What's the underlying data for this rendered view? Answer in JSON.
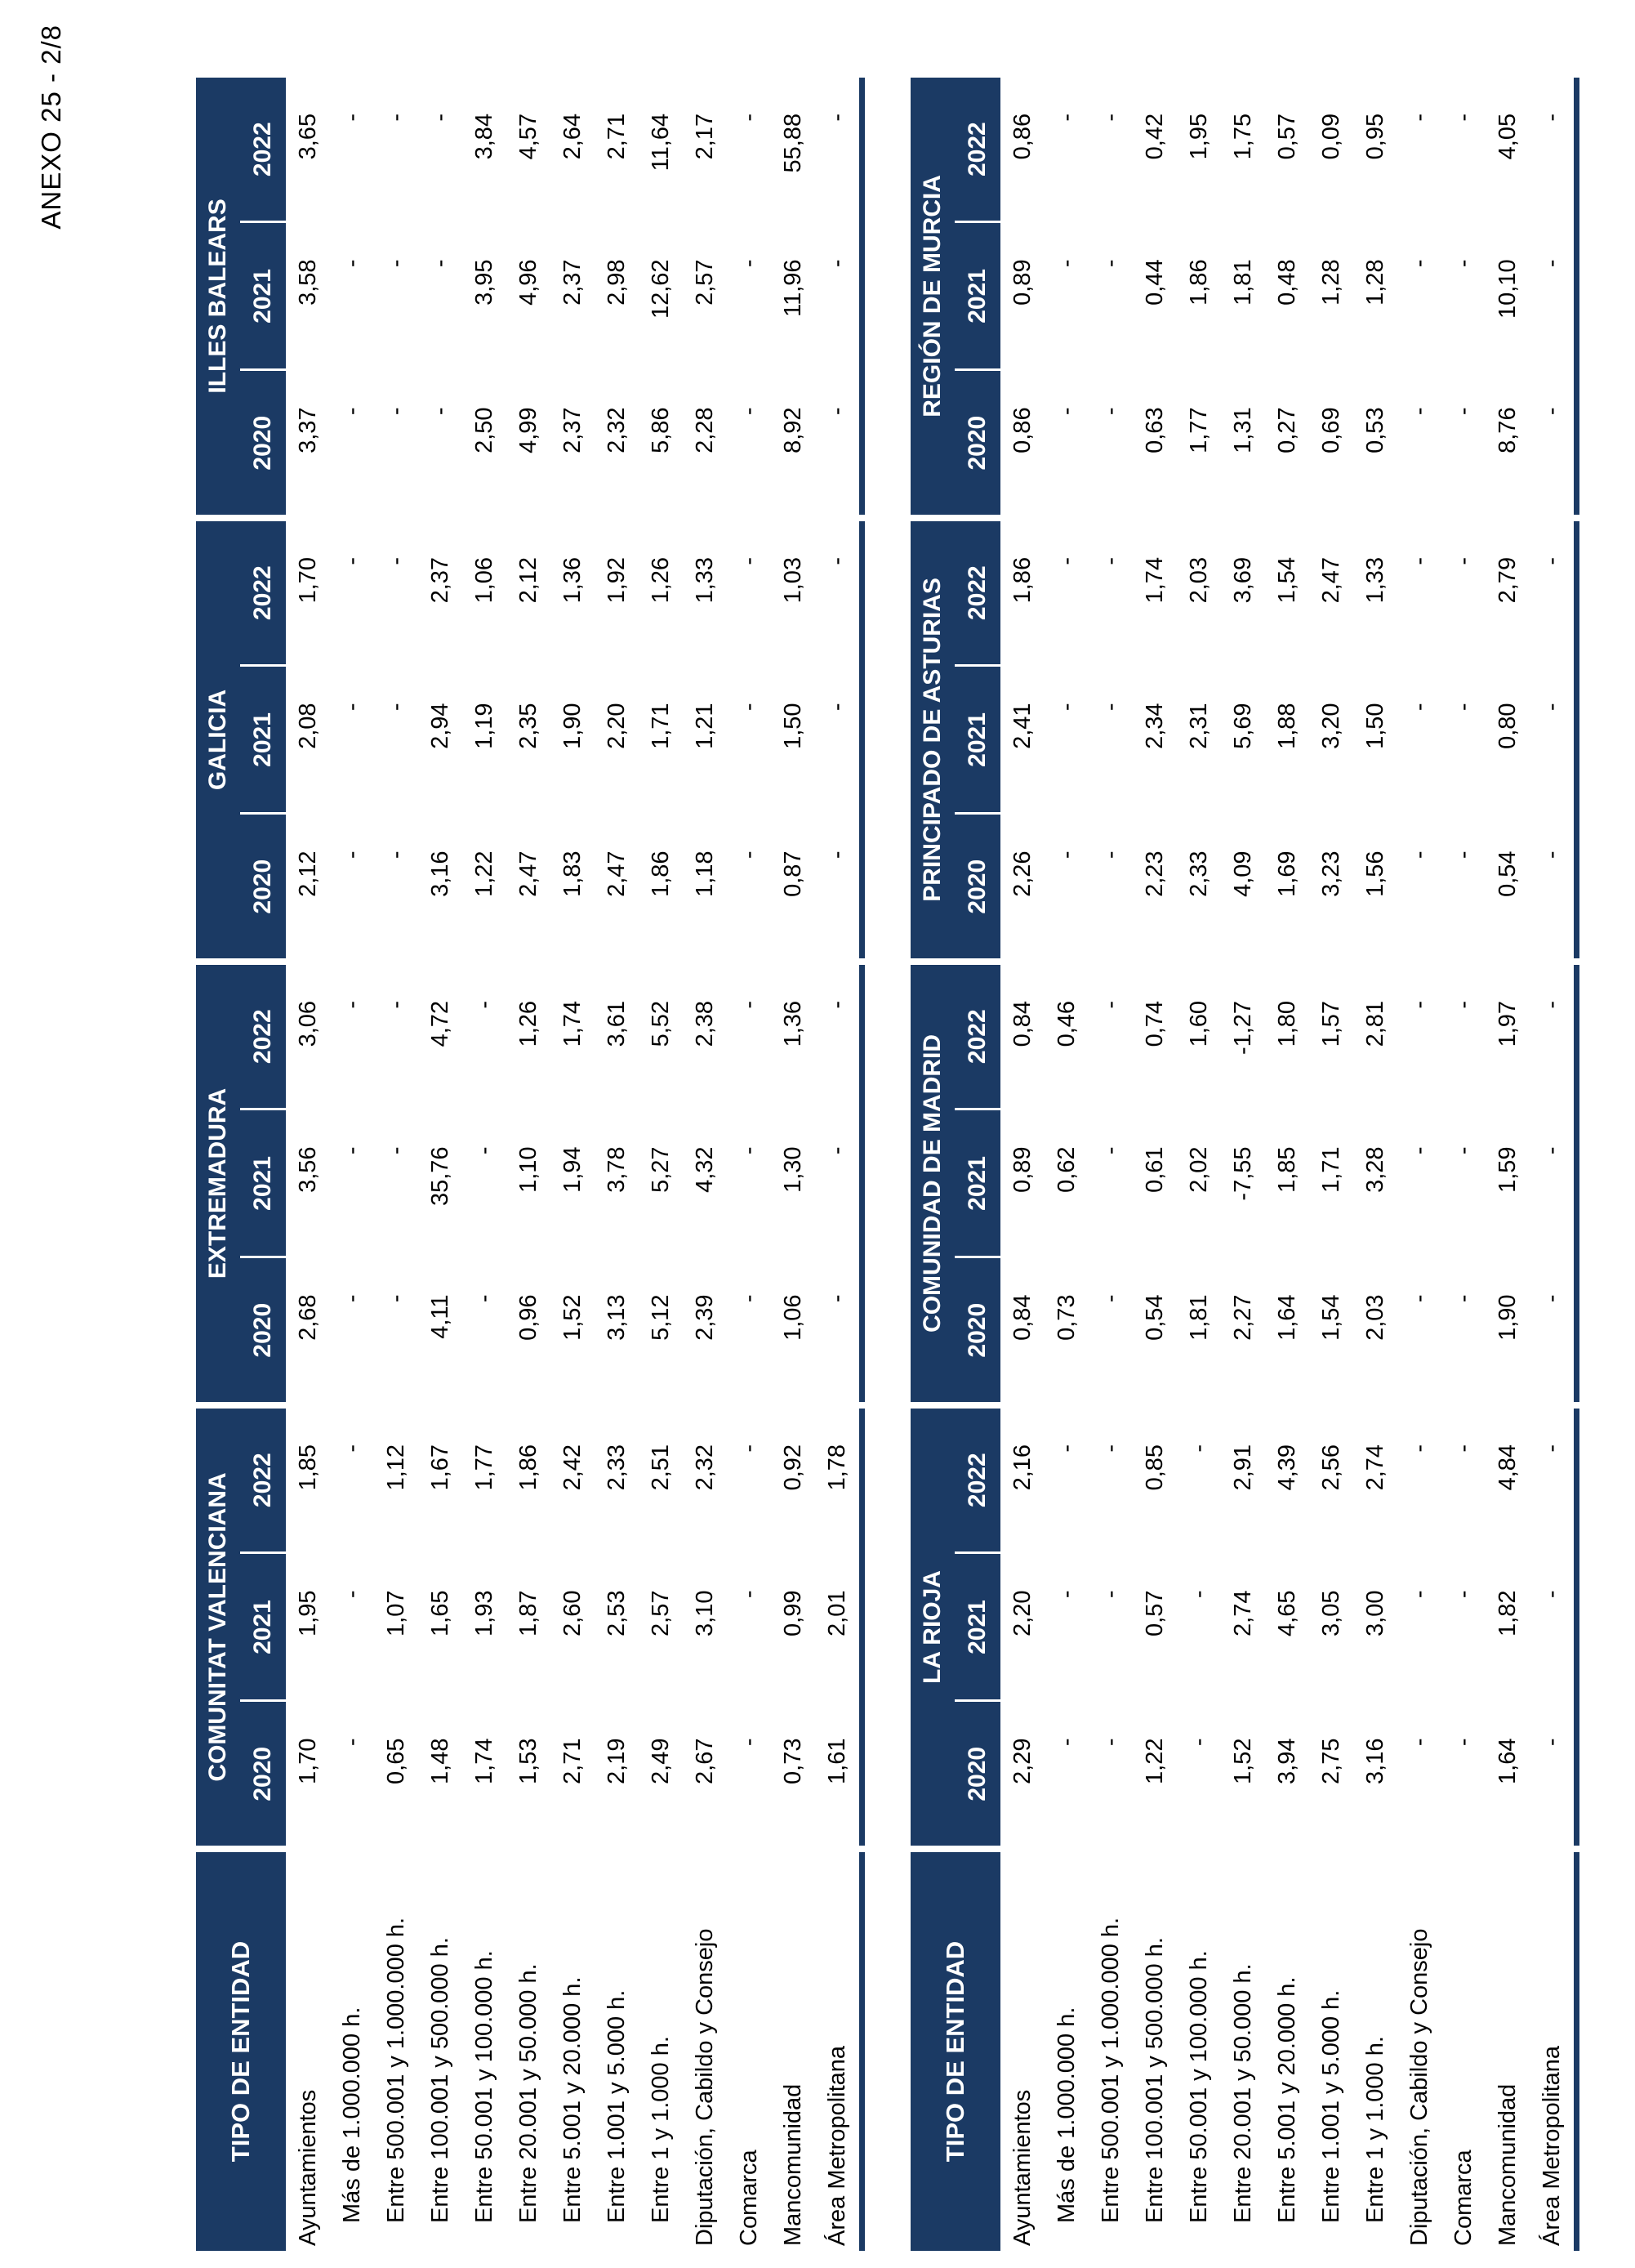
{
  "page": {
    "annex_label": "ANEXO 25 - 2/8"
  },
  "colors": {
    "navy": "#1B3A64",
    "text": "#000000"
  },
  "row_header_title": "TIPO DE ENTIDAD",
  "row_labels": [
    {
      "text": "Ayuntamientos",
      "indent": false
    },
    {
      "text": "Más de 1.000.000 h.",
      "indent": true
    },
    {
      "text": "Entre 500.001 y 1.000.000 h.",
      "indent": true
    },
    {
      "text": "Entre 100.001 y 500.000 h.",
      "indent": true
    },
    {
      "text": "Entre 50.001 y 100.000 h.",
      "indent": true
    },
    {
      "text": "Entre 20.001 y 50.000 h.",
      "indent": true
    },
    {
      "text": "Entre 5.001 y 20.000 h.",
      "indent": true
    },
    {
      "text": "Entre 1.001 y 5.000 h.",
      "indent": true
    },
    {
      "text": "Entre 1 y 1.000 h.",
      "indent": true
    },
    {
      "text": "Diputación, Cabildo y Consejo",
      "indent": false
    },
    {
      "text": "Comarca",
      "indent": false
    },
    {
      "text": "Mancomunidad",
      "indent": false
    },
    {
      "text": "Área Metropolitana",
      "indent": false
    }
  ],
  "tables": [
    {
      "corner": "TIPO DE ENTIDAD",
      "regions": [
        {
          "name": "COMUNITAT VALENCIANA",
          "years": [
            "2020",
            "2021",
            "2022"
          ],
          "rows": [
            [
              "1,70",
              "1,95",
              "1,85"
            ],
            [
              "-",
              "-",
              "-"
            ],
            [
              "0,65",
              "1,07",
              "1,12"
            ],
            [
              "1,48",
              "1,65",
              "1,67"
            ],
            [
              "1,74",
              "1,93",
              "1,77"
            ],
            [
              "1,53",
              "1,87",
              "1,86"
            ],
            [
              "2,71",
              "2,60",
              "2,42"
            ],
            [
              "2,19",
              "2,53",
              "2,33"
            ],
            [
              "2,49",
              "2,57",
              "2,51"
            ],
            [
              "2,67",
              "3,10",
              "2,32"
            ],
            [
              "-",
              "-",
              "-"
            ],
            [
              "0,73",
              "0,99",
              "0,92"
            ],
            [
              "1,61",
              "2,01",
              "1,78"
            ]
          ]
        },
        {
          "name": "EXTREMADURA",
          "years": [
            "2020",
            "2021",
            "2022"
          ],
          "rows": [
            [
              "2,68",
              "3,56",
              "3,06"
            ],
            [
              "-",
              "-",
              "-"
            ],
            [
              "-",
              "-",
              "-"
            ],
            [
              "4,11",
              "35,76",
              "4,72"
            ],
            [
              "-",
              "-",
              "-"
            ],
            [
              "0,96",
              "1,10",
              "1,26"
            ],
            [
              "1,52",
              "1,94",
              "1,74"
            ],
            [
              "3,13",
              "3,78",
              "3,61"
            ],
            [
              "5,12",
              "5,27",
              "5,52"
            ],
            [
              "2,39",
              "4,32",
              "2,38"
            ],
            [
              "-",
              "-",
              "-"
            ],
            [
              "1,06",
              "1,30",
              "1,36"
            ],
            [
              "-",
              "-",
              "-"
            ]
          ]
        },
        {
          "name": "GALICIA",
          "years": [
            "2020",
            "2021",
            "2022"
          ],
          "rows": [
            [
              "2,12",
              "2,08",
              "1,70"
            ],
            [
              "-",
              "-",
              "-"
            ],
            [
              "-",
              "-",
              "-"
            ],
            [
              "3,16",
              "2,94",
              "2,37"
            ],
            [
              "1,22",
              "1,19",
              "1,06"
            ],
            [
              "2,47",
              "2,35",
              "2,12"
            ],
            [
              "1,83",
              "1,90",
              "1,36"
            ],
            [
              "2,47",
              "2,20",
              "1,92"
            ],
            [
              "1,86",
              "1,71",
              "1,26"
            ],
            [
              "1,18",
              "1,21",
              "1,33"
            ],
            [
              "-",
              "-",
              "-"
            ],
            [
              "0,87",
              "1,50",
              "1,03"
            ],
            [
              "-",
              "-",
              "-"
            ]
          ]
        },
        {
          "name": "ILLES BALEARS",
          "years": [
            "2020",
            "2021",
            "2022"
          ],
          "rows": [
            [
              "3,37",
              "3,58",
              "3,65"
            ],
            [
              "-",
              "-",
              "-"
            ],
            [
              "-",
              "-",
              "-"
            ],
            [
              "-",
              "-",
              "-"
            ],
            [
              "2,50",
              "3,95",
              "3,84"
            ],
            [
              "4,99",
              "4,96",
              "4,57"
            ],
            [
              "2,37",
              "2,37",
              "2,64"
            ],
            [
              "2,32",
              "2,98",
              "2,71"
            ],
            [
              "5,86",
              "12,62",
              "11,64"
            ],
            [
              "2,28",
              "2,57",
              "2,17"
            ],
            [
              "-",
              "-",
              "-"
            ],
            [
              "8,92",
              "11,96",
              "55,88"
            ],
            [
              "-",
              "-",
              "-"
            ]
          ]
        }
      ]
    },
    {
      "corner": "TIPO DE ENTIDAD",
      "regions": [
        {
          "name": "LA RIOJA",
          "years": [
            "2020",
            "2021",
            "2022"
          ],
          "rows": [
            [
              "2,29",
              "2,20",
              "2,16"
            ],
            [
              "-",
              "-",
              "-"
            ],
            [
              "-",
              "-",
              "-"
            ],
            [
              "1,22",
              "0,57",
              "0,85"
            ],
            [
              "-",
              "-",
              "-"
            ],
            [
              "1,52",
              "2,74",
              "2,91"
            ],
            [
              "3,94",
              "4,65",
              "4,39"
            ],
            [
              "2,75",
              "3,05",
              "2,56"
            ],
            [
              "3,16",
              "3,00",
              "2,74"
            ],
            [
              "-",
              "-",
              "-"
            ],
            [
              "-",
              "-",
              "-"
            ],
            [
              "1,64",
              "1,82",
              "4,84"
            ],
            [
              "-",
              "-",
              "-"
            ]
          ]
        },
        {
          "name": "COMUNIDAD DE MADRID",
          "years": [
            "2020",
            "2021",
            "2022"
          ],
          "rows": [
            [
              "0,84",
              "0,89",
              "0,84"
            ],
            [
              "0,73",
              "0,62",
              "0,46"
            ],
            [
              "-",
              "-",
              "-"
            ],
            [
              "0,54",
              "0,61",
              "0,74"
            ],
            [
              "1,81",
              "2,02",
              "1,60"
            ],
            [
              "2,27",
              "-7,55",
              "-1,27"
            ],
            [
              "1,64",
              "1,85",
              "1,80"
            ],
            [
              "1,54",
              "1,71",
              "1,57"
            ],
            [
              "2,03",
              "3,28",
              "2,81"
            ],
            [
              "-",
              "-",
              "-"
            ],
            [
              "-",
              "-",
              "-"
            ],
            [
              "1,90",
              "1,59",
              "1,97"
            ],
            [
              "-",
              "-",
              "-"
            ]
          ]
        },
        {
          "name": "PRINCIPADO DE ASTURIAS",
          "years": [
            "2020",
            "2021",
            "2022"
          ],
          "rows": [
            [
              "2,26",
              "2,41",
              "1,86"
            ],
            [
              "-",
              "-",
              "-"
            ],
            [
              "-",
              "-",
              "-"
            ],
            [
              "2,23",
              "2,34",
              "1,74"
            ],
            [
              "2,33",
              "2,31",
              "2,03"
            ],
            [
              "4,09",
              "5,69",
              "3,69"
            ],
            [
              "1,69",
              "1,88",
              "1,54"
            ],
            [
              "3,23",
              "3,20",
              "2,47"
            ],
            [
              "1,56",
              "1,50",
              "1,33"
            ],
            [
              "-",
              "-",
              "-"
            ],
            [
              "-",
              "-",
              "-"
            ],
            [
              "0,54",
              "0,80",
              "2,79"
            ],
            [
              "-",
              "-",
              "-"
            ]
          ]
        },
        {
          "name": "REGIÓN DE MURCIA",
          "years": [
            "2020",
            "2021",
            "2022"
          ],
          "rows": [
            [
              "0,86",
              "0,89",
              "0,86"
            ],
            [
              "-",
              "-",
              "-"
            ],
            [
              "-",
              "-",
              "-"
            ],
            [
              "0,63",
              "0,44",
              "0,42"
            ],
            [
              "1,77",
              "1,86",
              "1,95"
            ],
            [
              "1,31",
              "1,81",
              "1,75"
            ],
            [
              "0,27",
              "0,48",
              "0,57"
            ],
            [
              "0,69",
              "1,28",
              "0,09"
            ],
            [
              "0,53",
              "1,28",
              "0,95"
            ],
            [
              "-",
              "-",
              "-"
            ],
            [
              "-",
              "-",
              "-"
            ],
            [
              "8,76",
              "10,10",
              "4,05"
            ],
            [
              "-",
              "-",
              "-"
            ]
          ]
        }
      ]
    }
  ]
}
